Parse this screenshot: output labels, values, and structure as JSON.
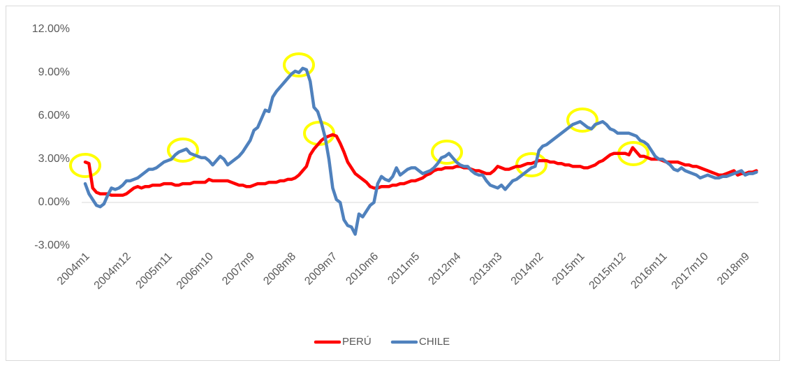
{
  "chart_data": {
    "type": "line",
    "categories": [
      "2004m1",
      null,
      null,
      null,
      null,
      null,
      null,
      null,
      null,
      null,
      null,
      "2004m12",
      null,
      null,
      null,
      null,
      null,
      null,
      null,
      null,
      null,
      null,
      "2005m11",
      null,
      null,
      null,
      null,
      null,
      null,
      null,
      null,
      null,
      null,
      "2006m10",
      null,
      null,
      null,
      null,
      null,
      null,
      null,
      null,
      null,
      null,
      "2007m9",
      null,
      null,
      null,
      null,
      null,
      null,
      null,
      null,
      null,
      null,
      "2008m8",
      null,
      null,
      null,
      null,
      null,
      null,
      null,
      null,
      null,
      null,
      "2009m7",
      null,
      null,
      null,
      null,
      null,
      null,
      null,
      null,
      null,
      null,
      "2010m6",
      null,
      null,
      null,
      null,
      null,
      null,
      null,
      null,
      null,
      null,
      "2011m5",
      null,
      null,
      null,
      null,
      null,
      null,
      null,
      null,
      null,
      null,
      "2012m4",
      null,
      null,
      null,
      null,
      null,
      null,
      null,
      null,
      null,
      null,
      "2013m3",
      null,
      null,
      null,
      null,
      null,
      null,
      null,
      null,
      null,
      null,
      "2014m2",
      null,
      null,
      null,
      null,
      null,
      null,
      null,
      null,
      null,
      null,
      "2015m1",
      null,
      null,
      null,
      null,
      null,
      null,
      null,
      null,
      null,
      null,
      "2015m12",
      null,
      null,
      null,
      null,
      null,
      null,
      null,
      null,
      null,
      null,
      "2016m11",
      null,
      null,
      null,
      null,
      null,
      null,
      null,
      null,
      null,
      null,
      "2017m10",
      null,
      null,
      null,
      null,
      null,
      null,
      null,
      null,
      null,
      null,
      "2018m9",
      null,
      null,
      null
    ],
    "series": [
      {
        "name": "PERÚ",
        "color": "#ff0000",
        "values": [
          2.8,
          2.7,
          1.0,
          0.7,
          0.6,
          0.6,
          0.6,
          0.5,
          0.5,
          0.5,
          0.5,
          0.6,
          0.8,
          1.0,
          1.1,
          1.0,
          1.1,
          1.1,
          1.2,
          1.2,
          1.2,
          1.3,
          1.3,
          1.3,
          1.2,
          1.2,
          1.3,
          1.3,
          1.3,
          1.4,
          1.4,
          1.4,
          1.4,
          1.6,
          1.5,
          1.5,
          1.5,
          1.5,
          1.5,
          1.4,
          1.3,
          1.2,
          1.2,
          1.1,
          1.1,
          1.2,
          1.3,
          1.3,
          1.3,
          1.4,
          1.4,
          1.4,
          1.5,
          1.5,
          1.6,
          1.6,
          1.7,
          1.9,
          2.2,
          2.5,
          3.3,
          3.7,
          4.0,
          4.3,
          4.5,
          4.6,
          4.7,
          4.6,
          4.1,
          3.5,
          2.8,
          2.4,
          2.0,
          1.8,
          1.6,
          1.4,
          1.1,
          1.0,
          1.0,
          1.1,
          1.1,
          1.1,
          1.2,
          1.2,
          1.3,
          1.3,
          1.4,
          1.5,
          1.5,
          1.6,
          1.7,
          1.9,
          2.0,
          2.2,
          2.3,
          2.3,
          2.4,
          2.4,
          2.4,
          2.5,
          2.5,
          2.4,
          2.4,
          2.3,
          2.2,
          2.2,
          2.1,
          2.0,
          2.0,
          2.2,
          2.5,
          2.4,
          2.3,
          2.3,
          2.4,
          2.5,
          2.5,
          2.6,
          2.7,
          2.7,
          2.8,
          2.9,
          2.9,
          2.9,
          2.8,
          2.8,
          2.7,
          2.7,
          2.6,
          2.6,
          2.5,
          2.5,
          2.5,
          2.4,
          2.4,
          2.5,
          2.6,
          2.8,
          2.9,
          3.1,
          3.3,
          3.4,
          3.4,
          3.4,
          3.4,
          3.3,
          3.8,
          3.5,
          3.2,
          3.2,
          3.1,
          3.0,
          3.0,
          3.0,
          2.9,
          2.8,
          2.8,
          2.8,
          2.8,
          2.7,
          2.6,
          2.6,
          2.5,
          2.5,
          2.4,
          2.3,
          2.2,
          2.1,
          2.0,
          1.9,
          1.9,
          2.0,
          2.1,
          2.2,
          1.9,
          2.0,
          2.0,
          2.1,
          2.1,
          2.2
        ]
      },
      {
        "name": "CHILE",
        "color": "#4f81bd",
        "values": [
          1.3,
          0.6,
          0.2,
          -0.2,
          -0.3,
          -0.1,
          0.5,
          1.0,
          0.9,
          1.0,
          1.2,
          1.5,
          1.5,
          1.6,
          1.7,
          1.9,
          2.1,
          2.3,
          2.3,
          2.4,
          2.6,
          2.8,
          2.9,
          3.0,
          3.3,
          3.5,
          3.6,
          3.7,
          3.4,
          3.3,
          3.2,
          3.1,
          3.1,
          2.9,
          2.6,
          2.9,
          3.2,
          3.0,
          2.6,
          2.8,
          3.0,
          3.2,
          3.5,
          3.9,
          4.3,
          5.0,
          5.2,
          5.8,
          6.4,
          6.3,
          7.3,
          7.7,
          8.0,
          8.3,
          8.6,
          8.9,
          9.1,
          9.0,
          9.3,
          9.2,
          8.4,
          6.6,
          6.3,
          5.5,
          4.5,
          3.0,
          1.0,
          0.2,
          0.0,
          -1.2,
          -1.6,
          -1.7,
          -2.2,
          -0.8,
          -1.0,
          -0.6,
          -0.2,
          0.0,
          1.3,
          1.8,
          1.6,
          1.5,
          1.8,
          2.4,
          1.9,
          2.1,
          2.3,
          2.4,
          2.4,
          2.2,
          2.0,
          2.1,
          2.2,
          2.4,
          2.7,
          3.1,
          3.2,
          3.4,
          3.1,
          2.8,
          2.6,
          2.5,
          2.5,
          2.2,
          2.0,
          1.9,
          1.9,
          1.5,
          1.2,
          1.1,
          1.0,
          1.2,
          0.9,
          1.2,
          1.5,
          1.6,
          1.8,
          2.0,
          2.2,
          2.4,
          2.5,
          3.6,
          3.9,
          4.0,
          4.2,
          4.4,
          4.6,
          4.8,
          5.0,
          5.2,
          5.4,
          5.5,
          5.6,
          5.4,
          5.2,
          5.1,
          5.4,
          5.5,
          5.6,
          5.4,
          5.1,
          5.0,
          4.8,
          4.8,
          4.8,
          4.8,
          4.7,
          4.6,
          4.3,
          4.2,
          4.0,
          3.6,
          3.2,
          3.0,
          3.0,
          2.8,
          2.6,
          2.3,
          2.2,
          2.4,
          2.2,
          2.1,
          2.0,
          1.9,
          1.7,
          1.8,
          1.9,
          1.8,
          1.7,
          1.7,
          1.8,
          1.8,
          1.9,
          2.0,
          2.1,
          2.2,
          1.9,
          2.0,
          2.0,
          2.1
        ]
      }
    ],
    "ylim": [
      -3,
      12
    ],
    "yticks": [
      {
        "value": -3,
        "label": "-3.00%"
      },
      {
        "value": 0,
        "label": "0.00%"
      },
      {
        "value": 3,
        "label": "3.00%"
      },
      {
        "value": 6,
        "label": "6.00%"
      },
      {
        "value": 9,
        "label": "9.00%"
      },
      {
        "value": 12,
        "label": "12.00%"
      }
    ],
    "grid": false,
    "legend": "bottom"
  }
}
